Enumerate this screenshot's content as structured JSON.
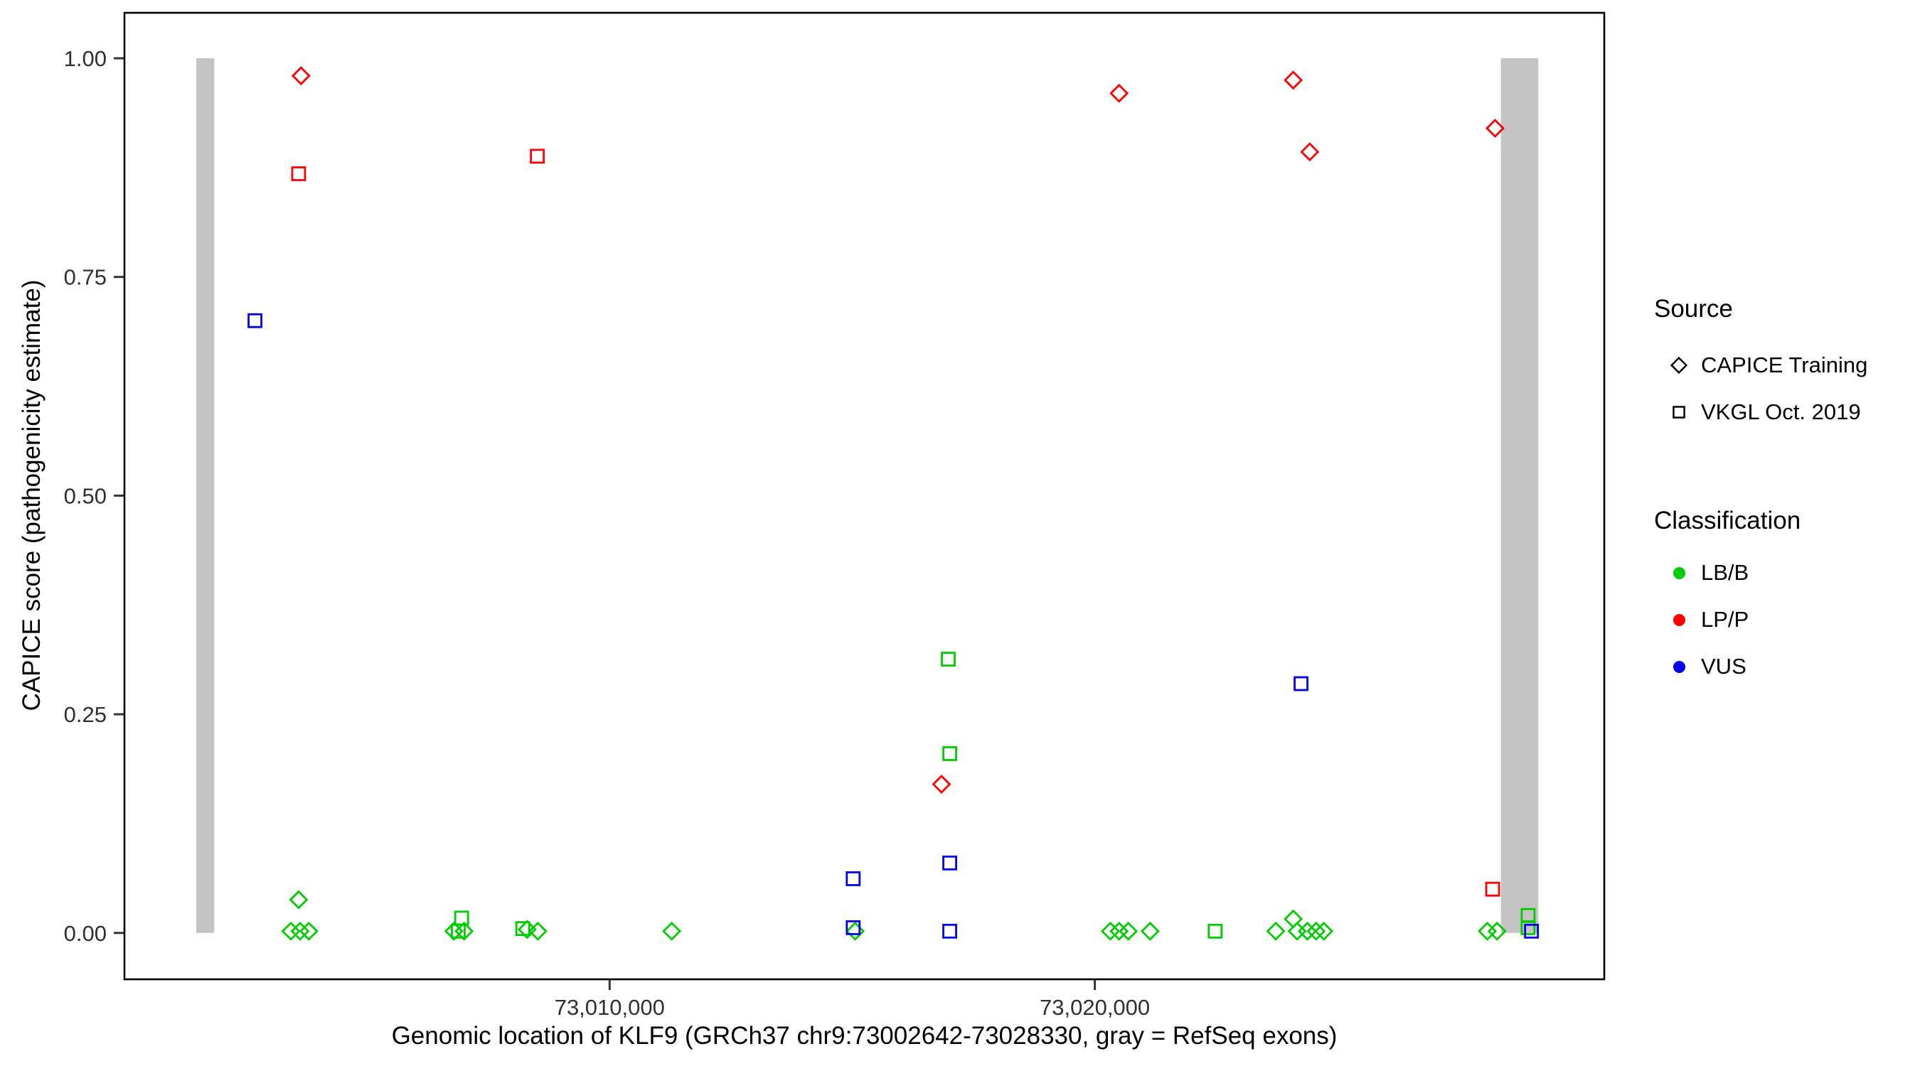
{
  "figure": {
    "background": "#FFFFFF"
  },
  "axes": {
    "x_label": "Genomic location of KLF9 (GRCh37 chr9:73002642-73028330, gray = RefSeq exons)",
    "y_label": "CAPICE score (pathogenicity estimate)"
  },
  "legend": {
    "source_title": "Source",
    "source_items": [
      {
        "label": "CAPICE Training",
        "marker": "diamond"
      },
      {
        "label": "VKGL Oct. 2019",
        "marker": "square"
      }
    ],
    "classification_title": "Classification",
    "classification_items": [
      {
        "label": "LB/B",
        "color": "#00CD00"
      },
      {
        "label": "LP/P",
        "color": "#FF0000"
      },
      {
        "label": "VUS",
        "color": "#0000EE"
      }
    ]
  },
  "chart_data": {
    "type": "scatter",
    "title": "",
    "xlabel": "Genomic location of KLF9 (GRCh37 chr9:73002642-73028330, gray = RefSeq exons)",
    "ylabel": "CAPICE score (pathogenicity estimate)",
    "x_domain": [
      73000000,
      73030500
    ],
    "y_domain": [
      -0.053,
      1.052
    ],
    "x_ticks": [
      {
        "value": 73010000,
        "label": "73,010,000"
      },
      {
        "value": 73020000,
        "label": "73,020,000"
      }
    ],
    "y_ticks": [
      {
        "value": 0.0,
        "label": "0.00"
      },
      {
        "value": 0.25,
        "label": "0.25"
      },
      {
        "value": 0.5,
        "label": "0.50"
      },
      {
        "value": 0.75,
        "label": "0.75"
      },
      {
        "value": 1.0,
        "label": "1.00"
      }
    ],
    "grid": false,
    "legend_position": "right",
    "exon_color": "#C4C4C4",
    "exons": [
      {
        "start": 73001480,
        "end": 73001850,
        "y_from": 0.0,
        "y_to": 1.0
      },
      {
        "start": 73028370,
        "end": 73029140,
        "y_from": 0.0,
        "y_to": 1.0
      }
    ],
    "colors": {
      "LB/B": "#00CD00",
      "LP/P": "#FF0000",
      "VUS": "#0000EE"
    },
    "markers": {
      "CAPICE Training": "diamond",
      "VKGL Oct. 2019": "square"
    },
    "series": [
      {
        "name": "CAPICE Training / LP/P",
        "source": "CAPICE Training",
        "classification": "LP/P",
        "points": [
          [
            73003640,
            0.98
          ],
          [
            73016840,
            0.17
          ],
          [
            73020500,
            0.96
          ],
          [
            73024090,
            0.975
          ],
          [
            73024430,
            0.893
          ],
          [
            73028250,
            0.92
          ]
        ]
      },
      {
        "name": "CAPICE Training / LB/B",
        "source": "CAPICE Training",
        "classification": "LB/B",
        "points": [
          [
            73003590,
            0.038
          ],
          [
            73003430,
            0.002
          ],
          [
            73003620,
            0.002
          ],
          [
            73003800,
            0.002
          ],
          [
            73006790,
            0.002
          ],
          [
            73007000,
            0.002
          ],
          [
            73008300,
            0.004
          ],
          [
            73008520,
            0.002
          ],
          [
            73011280,
            0.002
          ],
          [
            73015060,
            0.002
          ],
          [
            73020320,
            0.002
          ],
          [
            73020500,
            0.002
          ],
          [
            73020690,
            0.002
          ],
          [
            73021140,
            0.002
          ],
          [
            73023730,
            0.002
          ],
          [
            73024090,
            0.016
          ],
          [
            73024170,
            0.002
          ],
          [
            73024380,
            0.002
          ],
          [
            73024560,
            0.002
          ],
          [
            73024720,
            0.002
          ],
          [
            73028090,
            0.002
          ],
          [
            73028290,
            0.002
          ]
        ]
      },
      {
        "name": "VKGL Oct. 2019 / LP/P",
        "source": "VKGL Oct. 2019",
        "classification": "LP/P",
        "points": [
          [
            73003590,
            0.868
          ],
          [
            73008510,
            0.888
          ],
          [
            73028200,
            0.05
          ]
        ]
      },
      {
        "name": "VKGL Oct. 2019 / LB/B",
        "source": "VKGL Oct. 2019",
        "classification": "LB/B",
        "points": [
          [
            73006950,
            0.017
          ],
          [
            73006880,
            0.002
          ],
          [
            73008210,
            0.005
          ],
          [
            73016980,
            0.313
          ],
          [
            73017010,
            0.205
          ],
          [
            73022480,
            0.002
          ],
          [
            73028930,
            0.02
          ],
          [
            73028930,
            0.006
          ]
        ]
      },
      {
        "name": "VKGL Oct. 2019 / VUS",
        "source": "VKGL Oct. 2019",
        "classification": "VUS",
        "points": [
          [
            73002690,
            0.7
          ],
          [
            73015020,
            0.062
          ],
          [
            73015020,
            0.006
          ],
          [
            73017010,
            0.08
          ],
          [
            73017010,
            0.002
          ],
          [
            73024250,
            0.285
          ],
          [
            73029000,
            0.002
          ]
        ]
      }
    ]
  }
}
